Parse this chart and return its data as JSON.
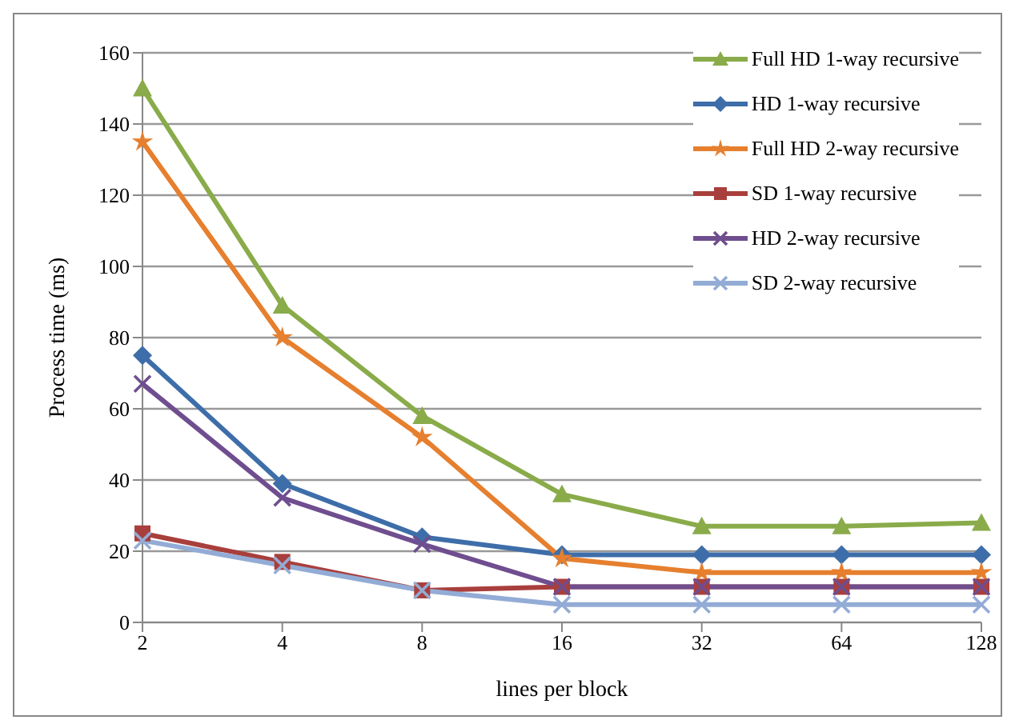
{
  "chart_data": {
    "type": "line",
    "xlabel": "lines per block",
    "ylabel": "Process time (ms)",
    "categories": [
      "2",
      "4",
      "8",
      "16",
      "32",
      "64",
      "128"
    ],
    "ylim": [
      0,
      160
    ],
    "yticks": [
      0,
      20,
      40,
      60,
      80,
      100,
      120,
      140,
      160
    ],
    "grid": "y",
    "legend": "top right",
    "series": [
      {
        "name": "Full HD 1-way recursive",
        "color": "#8aab4a",
        "marker": "triangle",
        "values": [
          150,
          89,
          58,
          36,
          27,
          27,
          28
        ]
      },
      {
        "name": "HD 1-way recursive",
        "color": "#3e6ea9",
        "marker": "diamond",
        "values": [
          75,
          39,
          24,
          19,
          19,
          19,
          19
        ]
      },
      {
        "name": "Full HD 2-way recursive",
        "color": "#e67f2e",
        "marker": "star",
        "values": [
          135,
          80,
          52,
          18,
          14,
          14,
          14
        ]
      },
      {
        "name": "SD 1-way recursive",
        "color": "#a83f3c",
        "marker": "square",
        "values": [
          25,
          17,
          9,
          10,
          10,
          10,
          10
        ]
      },
      {
        "name": "HD 2-way recursive",
        "color": "#6f4e8f",
        "marker": "cross",
        "values": [
          67,
          35,
          22,
          10,
          10,
          10,
          10
        ]
      },
      {
        "name": "SD 2-way recursive",
        "color": "#93acd6",
        "marker": "cross",
        "values": [
          23,
          16,
          9,
          5,
          5,
          5,
          5
        ]
      }
    ]
  }
}
